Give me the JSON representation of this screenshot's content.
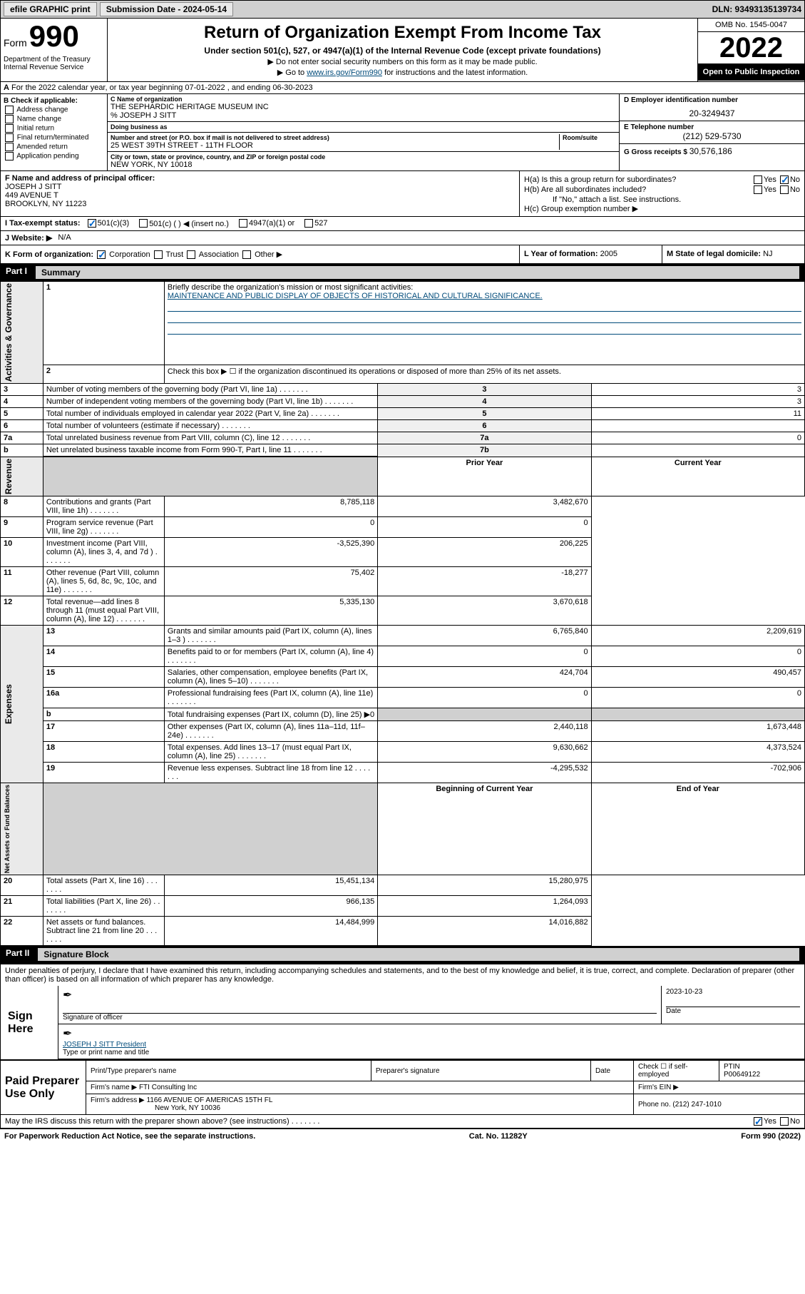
{
  "topbar": {
    "efile": "efile GRAPHIC print",
    "submission": "Submission Date - 2024-05-14",
    "dln": "DLN: 93493135139734"
  },
  "header": {
    "form_label": "Form",
    "form_num": "990",
    "dept": "Department of the Treasury\nInternal Revenue Service",
    "title": "Return of Organization Exempt From Income Tax",
    "subline": "Under section 501(c), 527, or 4947(a)(1) of the Internal Revenue Code (except private foundations)",
    "note1": "▶ Do not enter social security numbers on this form as it may be made public.",
    "note2_pre": "▶ Go to ",
    "note2_link": "www.irs.gov/Form990",
    "note2_post": " for instructions and the latest information.",
    "omb": "OMB No. 1545-0047",
    "year": "2022",
    "inspect": "Open to Public Inspection"
  },
  "row_a": {
    "label_a": "A",
    "text": "For the 2022 calendar year, or tax year beginning 07-01-2022    , and ending 06-30-2023"
  },
  "col_b": {
    "title": "B Check if applicable:",
    "items": [
      "Address change",
      "Name change",
      "Initial return",
      "Final return/terminated",
      "Amended return",
      "Application pending"
    ]
  },
  "col_c": {
    "name_label": "C Name of organization",
    "name": "THE SEPHARDIC HERITAGE MUSEUM INC",
    "care_of": "% JOSEPH J SITT",
    "dba_label": "Doing business as",
    "street_label": "Number and street (or P.O. box if mail is not delivered to street address)",
    "room_label": "Room/suite",
    "street": "25 WEST 39TH STREET - 11TH FLOOR",
    "city_label": "City or town, state or province, country, and ZIP or foreign postal code",
    "city": "NEW YORK, NY  10018"
  },
  "col_d": {
    "ein_label": "D Employer identification number",
    "ein": "20-3249437",
    "phone_label": "E Telephone number",
    "phone": "(212) 529-5730",
    "gross_label": "G Gross receipts $",
    "gross": "30,576,186"
  },
  "row_f": {
    "label": "F  Name and address of principal officer:",
    "name": "JOSEPH J SITT",
    "addr1": "449 AVENUE T",
    "addr2": "BROOKLYN, NY  11223"
  },
  "row_h": {
    "ha": "H(a)  Is this a group return for subordinates?",
    "hb": "H(b)  Are all subordinates included?",
    "hb_note": "If \"No,\" attach a list. See instructions.",
    "hc": "H(c)  Group exemption number ▶",
    "yes": "Yes",
    "no": "No"
  },
  "row_i": {
    "label": "I   Tax-exempt status:",
    "opt1": "501(c)(3)",
    "opt2": "501(c) (  ) ◀ (insert no.)",
    "opt3": "4947(a)(1) or",
    "opt4": "527"
  },
  "row_j": {
    "label": "J   Website: ▶",
    "val": "N/A"
  },
  "row_k": {
    "label": "K Form of organization:",
    "opts": [
      "Corporation",
      "Trust",
      "Association",
      "Other ▶"
    ]
  },
  "row_l": {
    "label": "L Year of formation:",
    "val": "2005"
  },
  "row_m": {
    "label": "M State of legal domicile:",
    "val": "NJ"
  },
  "part1": {
    "label": "Part I",
    "title": "Summary"
  },
  "summary": {
    "line1_label": "Briefly describe the organization's mission or most significant activities:",
    "line1_val": "MAINTENANCE AND PUBLIC DISPLAY OF OBJECTS OF HISTORICAL AND CULTURAL SIGNIFICANCE.",
    "line2": "Check this box ▶ ☐  if the organization discontinued its operations or disposed of more than 25% of its net assets.",
    "prior_year": "Prior Year",
    "current_year": "Current Year",
    "begin_year": "Beginning of Current Year",
    "end_year": "End of Year",
    "sidebars": {
      "gov": "Activities & Governance",
      "rev": "Revenue",
      "exp": "Expenses",
      "net": "Net Assets or Fund Balances"
    },
    "rows_gov": [
      {
        "n": "3",
        "t": "Number of voting members of the governing body (Part VI, line 1a)",
        "a": "3",
        "v": "3"
      },
      {
        "n": "4",
        "t": "Number of independent voting members of the governing body (Part VI, line 1b)",
        "a": "4",
        "v": "3"
      },
      {
        "n": "5",
        "t": "Total number of individuals employed in calendar year 2022 (Part V, line 2a)",
        "a": "5",
        "v": "11"
      },
      {
        "n": "6",
        "t": "Total number of volunteers (estimate if necessary)",
        "a": "6",
        "v": ""
      },
      {
        "n": "7a",
        "t": "Total unrelated business revenue from Part VIII, column (C), line 12",
        "a": "7a",
        "v": "0"
      },
      {
        "n": "b",
        "t": "Net unrelated business taxable income from Form 990-T, Part I, line 11",
        "a": "7b",
        "v": ""
      }
    ],
    "rows_rev": [
      {
        "n": "8",
        "t": "Contributions and grants (Part VIII, line 1h)",
        "py": "8,785,118",
        "cy": "3,482,670"
      },
      {
        "n": "9",
        "t": "Program service revenue (Part VIII, line 2g)",
        "py": "0",
        "cy": "0"
      },
      {
        "n": "10",
        "t": "Investment income (Part VIII, column (A), lines 3, 4, and 7d )",
        "py": "-3,525,390",
        "cy": "206,225"
      },
      {
        "n": "11",
        "t": "Other revenue (Part VIII, column (A), lines 5, 6d, 8c, 9c, 10c, and 11e)",
        "py": "75,402",
        "cy": "-18,277"
      },
      {
        "n": "12",
        "t": "Total revenue—add lines 8 through 11 (must equal Part VIII, column (A), line 12)",
        "py": "5,335,130",
        "cy": "3,670,618"
      }
    ],
    "rows_exp": [
      {
        "n": "13",
        "t": "Grants and similar amounts paid (Part IX, column (A), lines 1–3 )",
        "py": "6,765,840",
        "cy": "2,209,619"
      },
      {
        "n": "14",
        "t": "Benefits paid to or for members (Part IX, column (A), line 4)",
        "py": "0",
        "cy": "0"
      },
      {
        "n": "15",
        "t": "Salaries, other compensation, employee benefits (Part IX, column (A), lines 5–10)",
        "py": "424,704",
        "cy": "490,457"
      },
      {
        "n": "16a",
        "t": "Professional fundraising fees (Part IX, column (A), line 11e)",
        "py": "0",
        "cy": "0"
      },
      {
        "n": "b",
        "t": "Total fundraising expenses (Part IX, column (D), line 25) ▶0",
        "py": "",
        "cy": "",
        "grey": true
      },
      {
        "n": "17",
        "t": "Other expenses (Part IX, column (A), lines 11a–11d, 11f–24e)",
        "py": "2,440,118",
        "cy": "1,673,448"
      },
      {
        "n": "18",
        "t": "Total expenses. Add lines 13–17 (must equal Part IX, column (A), line 25)",
        "py": "9,630,662",
        "cy": "4,373,524"
      },
      {
        "n": "19",
        "t": "Revenue less expenses. Subtract line 18 from line 12",
        "py": "-4,295,532",
        "cy": "-702,906"
      }
    ],
    "rows_net": [
      {
        "n": "20",
        "t": "Total assets (Part X, line 16)",
        "py": "15,451,134",
        "cy": "15,280,975"
      },
      {
        "n": "21",
        "t": "Total liabilities (Part X, line 26)",
        "py": "966,135",
        "cy": "1,264,093"
      },
      {
        "n": "22",
        "t": "Net assets or fund balances. Subtract line 21 from line 20",
        "py": "14,484,999",
        "cy": "14,016,882"
      }
    ]
  },
  "part2": {
    "label": "Part II",
    "title": "Signature Block"
  },
  "sig": {
    "decl": "Under penalties of perjury, I declare that I have examined this return, including accompanying schedules and statements, and to the best of my knowledge and belief, it is true, correct, and complete. Declaration of preparer (other than officer) is based on all information of which preparer has any knowledge.",
    "sign_here": "Sign Here",
    "sig_officer": "Signature of officer",
    "date": "Date",
    "date_val": "2023-10-23",
    "name_title": "JOSEPH J SITT President",
    "type_name": "Type or print name and title"
  },
  "prep": {
    "label": "Paid Preparer Use Only",
    "cols": [
      "Print/Type preparer's name",
      "Preparer's signature",
      "Date"
    ],
    "check_self": "Check ☐ if self-employed",
    "ptin_label": "PTIN",
    "ptin": "P00649122",
    "firm_name_label": "Firm's name    ▶",
    "firm_name": "FTI Consulting Inc",
    "firm_ein_label": "Firm's EIN ▶",
    "firm_addr_label": "Firm's address ▶",
    "firm_addr1": "1166 AVENUE OF AMERICAS 15TH FL",
    "firm_addr2": "New York, NY  10036",
    "phone_label": "Phone no.",
    "phone": "(212) 247-1010"
  },
  "footer": {
    "discuss": "May the IRS discuss this return with the preparer shown above? (see instructions)",
    "paperwork": "For Paperwork Reduction Act Notice, see the separate instructions.",
    "cat": "Cat. No. 11282Y",
    "form": "Form 990 (2022)",
    "yes": "Yes",
    "no": "No"
  },
  "colors": {
    "topbar_bg": "#d0d0d0",
    "link": "#004b7a",
    "check": "#0066cc"
  }
}
